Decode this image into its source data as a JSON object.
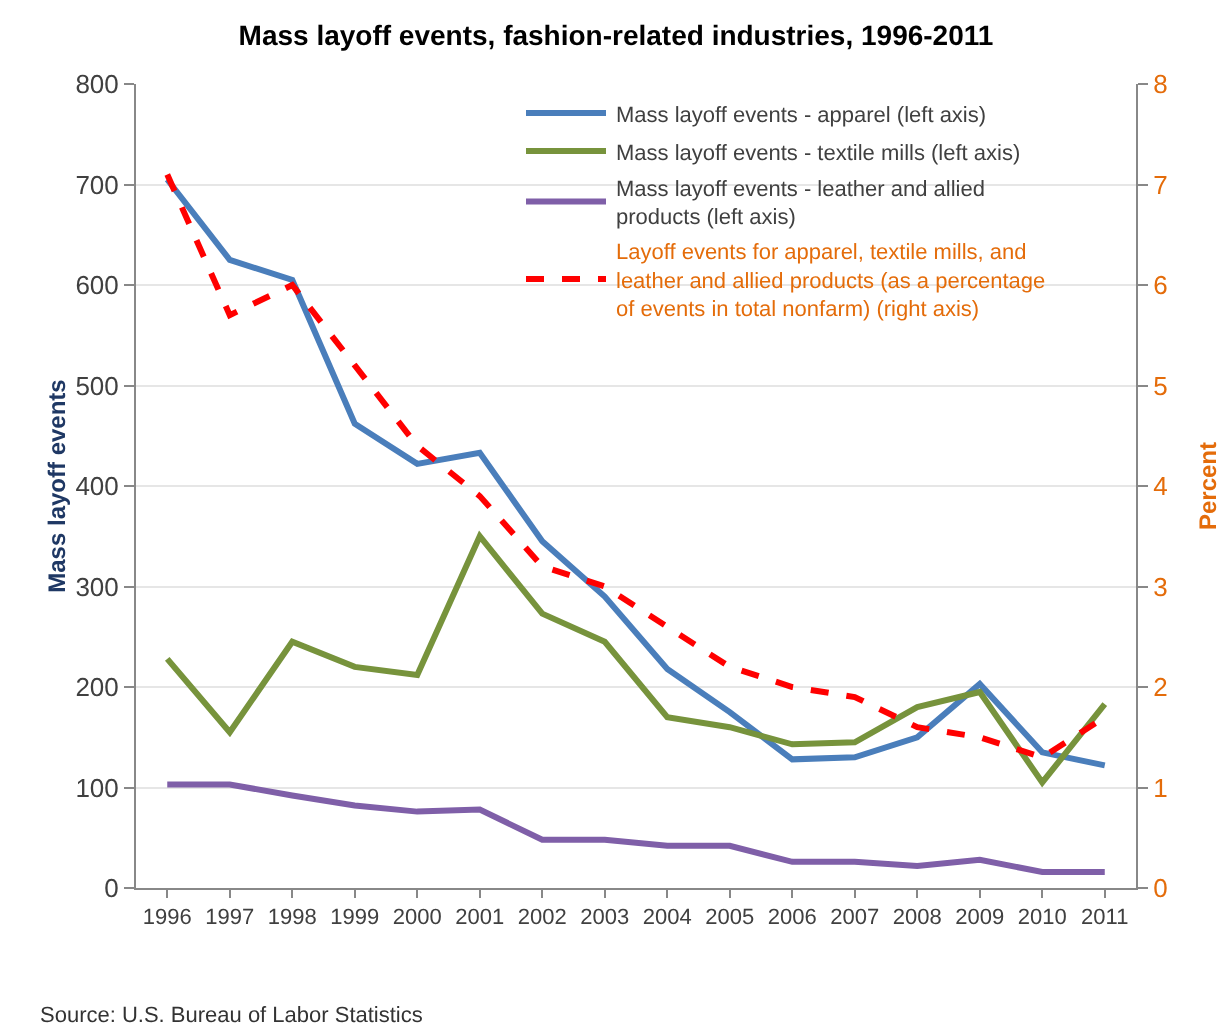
{
  "chart_data": {
    "type": "line",
    "title": "Mass layoff events, fashion-related industries, 1996-2011",
    "xlabel": null,
    "ylabel": "Mass layoff events",
    "y2label": "Percent",
    "categories": [
      "1996",
      "1997",
      "1998",
      "1999",
      "2000",
      "2001",
      "2002",
      "2003",
      "2004",
      "2005",
      "2006",
      "2007",
      "2008",
      "2009",
      "2010",
      "2011"
    ],
    "series": [
      {
        "name": "Mass layoff events - apparel (left axis)",
        "color": "#4a7ebb",
        "values": [
          705,
          625,
          605,
          462,
          422,
          433,
          345,
          290,
          218,
          175,
          128,
          130,
          150,
          203,
          135,
          122
        ]
      },
      {
        "name": "Mass layoff events - textile mills (left axis)",
        "color": "#77933c",
        "values": [
          228,
          155,
          245,
          220,
          212,
          350,
          273,
          245,
          170,
          160,
          143,
          145,
          180,
          195,
          105,
          183
        ]
      },
      {
        "name": "Mass layoff events - leather and allied products (left axis)",
        "color": "#7f5fa8",
        "values": [
          103,
          103,
          92,
          82,
          76,
          78,
          48,
          48,
          42,
          42,
          26,
          26,
          22,
          28,
          16,
          16
        ]
      },
      {
        "name": "Layoff events for apparel, textile mills, and leather and allied products (as a percentage of events in total nonfarm) (right axis)",
        "color": "#ff0000",
        "axis": "y2",
        "line_style": "dashed",
        "values": [
          7.1,
          5.7,
          6.0,
          5.2,
          4.4,
          3.9,
          3.2,
          3.0,
          2.6,
          2.2,
          2.0,
          1.9,
          1.6,
          1.5,
          1.3,
          1.7
        ]
      }
    ],
    "ylim": [
      0,
      800
    ],
    "yticks": [
      0,
      100,
      200,
      300,
      400,
      500,
      600,
      700,
      800
    ],
    "y2lim": [
      0,
      8
    ],
    "y2ticks": [
      0,
      1,
      2,
      3,
      4,
      5,
      6,
      7,
      8
    ],
    "grid": "y",
    "legend": "top right",
    "marker": "none",
    "annotations": [
      "Source: U.S. Bureau of Labor Statistics"
    ]
  }
}
